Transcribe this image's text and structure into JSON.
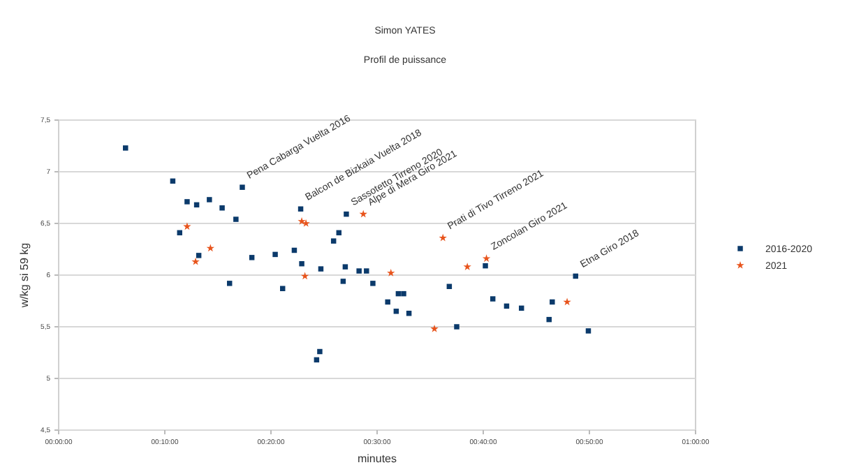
{
  "chart_data": {
    "type": "scatter",
    "title": "Simon YATES",
    "subtitle": "Profil de puissance",
    "xlabel": "minutes",
    "ylabel": "w/kg si 59 kg",
    "xlim": [
      0,
      60
    ],
    "xticks": [
      {
        "value": 0,
        "label": "00:00:00"
      },
      {
        "value": 10,
        "label": "00:10:00"
      },
      {
        "value": 20,
        "label": "00:20:00"
      },
      {
        "value": 30,
        "label": "00:30:00"
      },
      {
        "value": 40,
        "label": "00:40:00"
      },
      {
        "value": 50,
        "label": "00:50:00"
      },
      {
        "value": 60,
        "label": "01:00:00"
      }
    ],
    "ylim": [
      4.5,
      7.5
    ],
    "yticks": [
      {
        "value": 4.5,
        "label": "4,5"
      },
      {
        "value": 5,
        "label": "5"
      },
      {
        "value": 5.5,
        "label": "5,5"
      },
      {
        "value": 6,
        "label": "6"
      },
      {
        "value": 6.5,
        "label": "6,5"
      },
      {
        "value": 7,
        "label": "7"
      },
      {
        "value": 7.5,
        "label": "7,5"
      }
    ],
    "grid": "y",
    "legend": "right",
    "series": [
      {
        "name": "2016-2020",
        "color": "#0b3a6b",
        "marker": "square",
        "x": [
          6.3,
          10.75,
          12.1,
          13.0,
          14.2,
          15.4,
          17.3,
          16.7,
          11.4,
          13.2,
          16.1,
          18.2,
          20.4,
          21.1,
          22.2,
          22.8,
          22.9,
          24.7,
          24.6,
          24.3,
          27.1,
          25.9,
          26.4,
          27.0,
          26.8,
          28.3,
          29.0,
          29.6,
          31.0,
          32.0,
          32.5,
          31.8,
          33.0,
          36.8,
          37.5,
          40.2,
          40.9,
          42.2,
          43.6,
          46.2,
          46.5,
          48.7,
          49.9
        ],
        "values": [
          7.23,
          6.91,
          6.71,
          6.68,
          6.73,
          6.65,
          6.85,
          6.54,
          6.41,
          6.19,
          5.92,
          6.17,
          6.2,
          5.87,
          6.24,
          6.64,
          6.11,
          6.06,
          5.26,
          5.18,
          6.59,
          6.33,
          6.41,
          6.08,
          5.94,
          6.04,
          6.04,
          5.92,
          5.74,
          5.82,
          5.82,
          5.65,
          5.63,
          5.89,
          5.5,
          6.09,
          5.77,
          5.7,
          5.68,
          5.57,
          5.74,
          5.99,
          5.46
        ]
      },
      {
        "name": "2021",
        "color": "#e8541c",
        "marker": "star",
        "x": [
          12.1,
          14.3,
          12.9,
          22.9,
          23.3,
          23.2,
          28.7,
          31.3,
          36.2,
          38.5,
          40.3,
          35.4,
          47.9
        ],
        "values": [
          6.47,
          6.26,
          6.13,
          6.52,
          6.5,
          5.99,
          6.59,
          6.02,
          6.36,
          6.08,
          6.16,
          5.48,
          5.74
        ]
      }
    ],
    "annotations": [
      {
        "text": "Pena Cabarga Vuelta 2016",
        "x": 17.3,
        "y": 6.85
      },
      {
        "text": "Balcon de Bizkaia Vuelta 2018",
        "x": 22.8,
        "y": 6.64
      },
      {
        "text": "Sassotetto Tirreno 2020",
        "x": 27.1,
        "y": 6.59
      },
      {
        "text": "Alpe di Mera Giro 2021",
        "x": 28.7,
        "y": 6.59
      },
      {
        "text": "Prati di Tivo Tirreno 2021",
        "x": 36.2,
        "y": 6.36
      },
      {
        "text": "Zoncolan Giro 2021",
        "x": 40.3,
        "y": 6.16
      },
      {
        "text": "Etna Giro 2018",
        "x": 48.7,
        "y": 5.99
      }
    ]
  }
}
